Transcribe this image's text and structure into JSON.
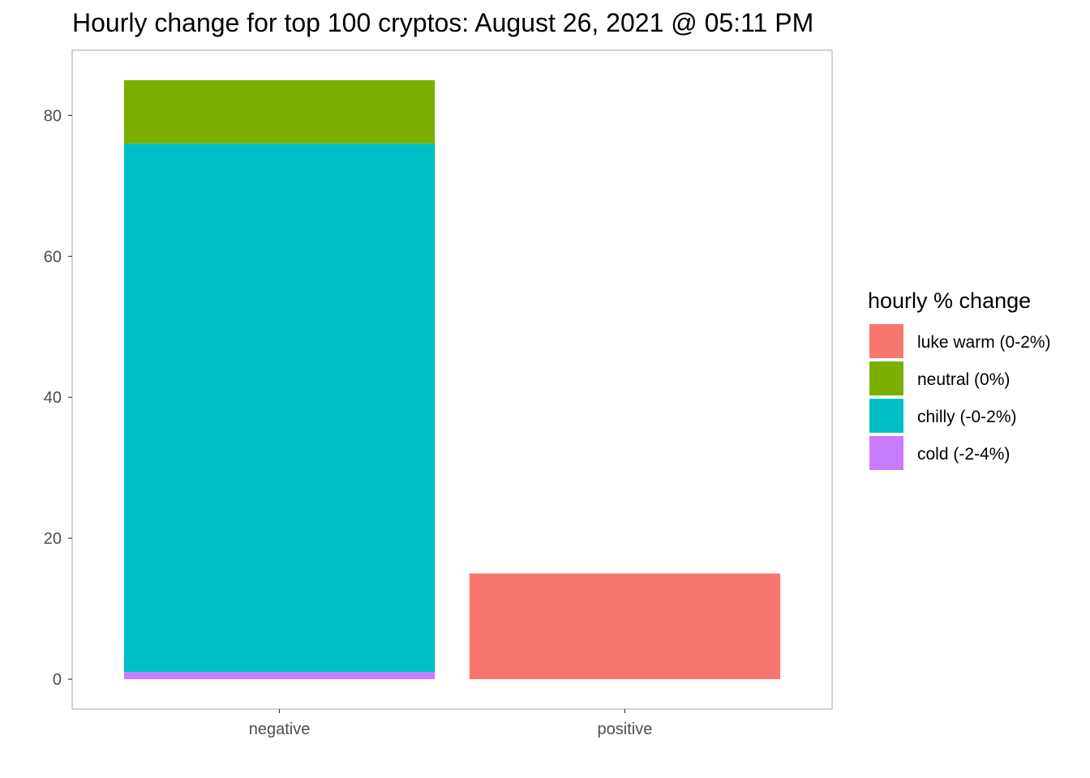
{
  "chart_data": {
    "type": "bar",
    "stacked": true,
    "title": "Hourly change for top 100 cryptos: August 26, 2021 @ 05:11 PM",
    "xlabel": "",
    "ylabel": "",
    "categories": [
      "negative",
      "positive"
    ],
    "ylim": [
      -4.25,
      89.25
    ],
    "yticks": [
      0,
      20,
      40,
      60,
      80
    ],
    "grid": false,
    "legend": {
      "title": "hourly % change",
      "position": "right",
      "entries": [
        {
          "name": "luke warm (0-2%)",
          "color": "#F8766D"
        },
        {
          "name": "neutral (0%)",
          "color": "#7CAE00"
        },
        {
          "name": "chilly (-0-2%)",
          "color": "#00BFC4"
        },
        {
          "name": "cold (-2-4%)",
          "color": "#C77CFF"
        }
      ]
    },
    "series": [
      {
        "name": "cold (-2-4%)",
        "color": "#C77CFF",
        "values": [
          1,
          0
        ]
      },
      {
        "name": "chilly (-0-2%)",
        "color": "#00BFC4",
        "values": [
          75,
          0
        ]
      },
      {
        "name": "neutral (0%)",
        "color": "#7CAE00",
        "values": [
          9,
          0
        ]
      },
      {
        "name": "luke warm (0-2%)",
        "color": "#F8766D",
        "values": [
          0,
          15
        ]
      }
    ]
  }
}
